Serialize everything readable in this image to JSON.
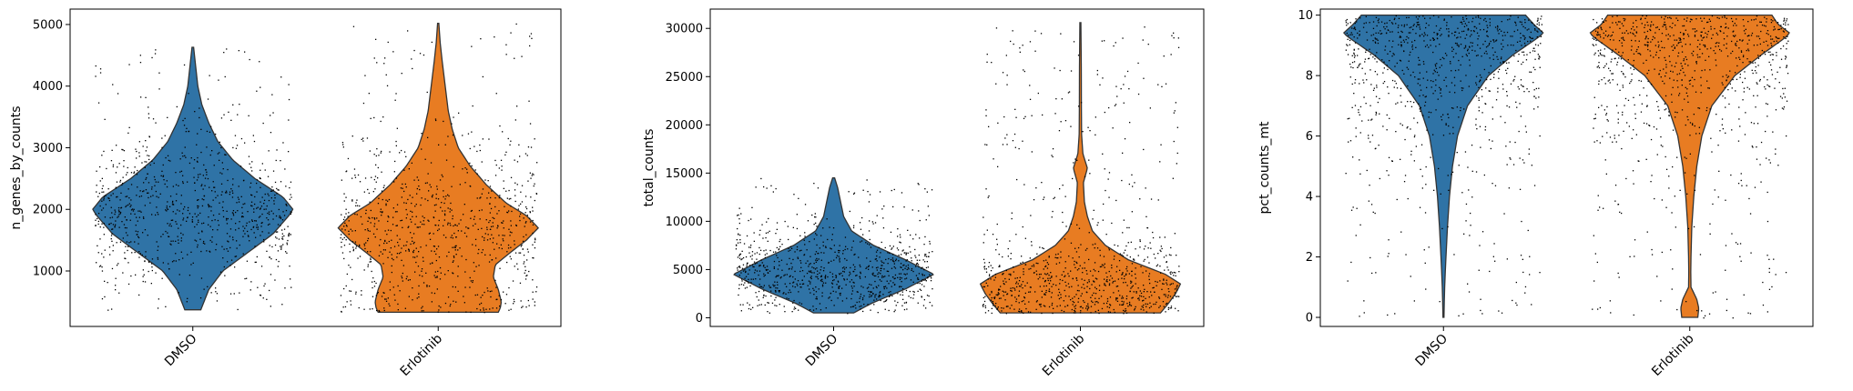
{
  "colors": {
    "DMSO": "#2f73a6",
    "Erlotinib": "#e87c22",
    "edge": "#333333",
    "dots": "#000000"
  },
  "chart_data": [
    {
      "type": "violin",
      "ylabel": "n_genes_by_counts",
      "ylim": [
        100,
        5250
      ],
      "yticks": [
        1000,
        2000,
        3000,
        4000,
        5000
      ],
      "categories": [
        "DMSO",
        "Erlotinib"
      ],
      "series": [
        {
          "category": "DMSO",
          "range": [
            370,
            4630
          ],
          "density_profile": [
            [
              370,
              0.08
            ],
            [
              700,
              0.16
            ],
            [
              1000,
              0.3
            ],
            [
              1300,
              0.55
            ],
            [
              1600,
              0.8
            ],
            [
              1900,
              0.96
            ],
            [
              2000,
              1.0
            ],
            [
              2200,
              0.9
            ],
            [
              2500,
              0.62
            ],
            [
              2800,
              0.4
            ],
            [
              3100,
              0.25
            ],
            [
              3400,
              0.16
            ],
            [
              3700,
              0.09
            ],
            [
              4000,
              0.05
            ],
            [
              4300,
              0.03
            ],
            [
              4630,
              0.008
            ]
          ]
        },
        {
          "category": "Erlotinib",
          "range": [
            330,
            5020
          ],
          "density_profile": [
            [
              330,
              0.6
            ],
            [
              400,
              0.62
            ],
            [
              500,
              0.63
            ],
            [
              700,
              0.6
            ],
            [
              900,
              0.55
            ],
            [
              1100,
              0.57
            ],
            [
              1300,
              0.72
            ],
            [
              1500,
              0.88
            ],
            [
              1700,
              1.0
            ],
            [
              1900,
              0.88
            ],
            [
              2100,
              0.68
            ],
            [
              2400,
              0.48
            ],
            [
              2700,
              0.32
            ],
            [
              3000,
              0.2
            ],
            [
              3300,
              0.14
            ],
            [
              3600,
              0.1
            ],
            [
              4000,
              0.07
            ],
            [
              4400,
              0.04
            ],
            [
              4700,
              0.02
            ],
            [
              5020,
              0.006
            ]
          ]
        }
      ]
    },
    {
      "type": "violin",
      "ylabel": "total_counts",
      "ylim": [
        -900,
        32000
      ],
      "yticks": [
        0,
        5000,
        10000,
        15000,
        20000,
        25000,
        30000
      ],
      "categories": [
        "DMSO",
        "Erlotinib"
      ],
      "series": [
        {
          "category": "DMSO",
          "range": [
            500,
            14500
          ],
          "density_profile": [
            [
              500,
              0.2
            ],
            [
              1500,
              0.38
            ],
            [
              3000,
              0.72
            ],
            [
              4500,
              1.0
            ],
            [
              6000,
              0.72
            ],
            [
              7500,
              0.4
            ],
            [
              9000,
              0.18
            ],
            [
              10500,
              0.1
            ],
            [
              12000,
              0.07
            ],
            [
              13500,
              0.04
            ],
            [
              14500,
              0.01
            ]
          ]
        },
        {
          "category": "Erlotinib",
          "range": [
            500,
            30600
          ],
          "density_profile": [
            [
              500,
              0.8
            ],
            [
              1500,
              0.88
            ],
            [
              2500,
              0.95
            ],
            [
              3500,
              1.0
            ],
            [
              4500,
              0.85
            ],
            [
              6000,
              0.48
            ],
            [
              7500,
              0.25
            ],
            [
              9000,
              0.12
            ],
            [
              10500,
              0.07
            ],
            [
              12000,
              0.04
            ],
            [
              14000,
              0.03
            ],
            [
              15500,
              0.07
            ],
            [
              17000,
              0.025
            ],
            [
              19000,
              0.012
            ],
            [
              22000,
              0.01
            ],
            [
              26000,
              0.009
            ],
            [
              30600,
              0.005
            ]
          ]
        }
      ]
    },
    {
      "type": "violin",
      "ylabel": "pct_counts_mt",
      "ylim": [
        -0.3,
        10.2
      ],
      "yticks": [
        0,
        2,
        4,
        6,
        8,
        10
      ],
      "categories": [
        "DMSO",
        "Erlotinib"
      ],
      "series": [
        {
          "category": "DMSO",
          "range": [
            0,
            10
          ],
          "density_profile": [
            [
              0,
              0.005
            ],
            [
              0.5,
              0.008
            ],
            [
              1,
              0.012
            ],
            [
              1.5,
              0.018
            ],
            [
              2,
              0.025
            ],
            [
              3,
              0.04
            ],
            [
              4,
              0.06
            ],
            [
              5,
              0.09
            ],
            [
              6,
              0.14
            ],
            [
              7,
              0.24
            ],
            [
              8,
              0.45
            ],
            [
              8.7,
              0.7
            ],
            [
              9.2,
              0.92
            ],
            [
              9.4,
              1.0
            ],
            [
              9.7,
              0.9
            ],
            [
              10,
              0.82
            ]
          ]
        },
        {
          "category": "Erlotinib",
          "range": [
            0,
            10
          ],
          "density_profile": [
            [
              0,
              0.08
            ],
            [
              0.3,
              0.09
            ],
            [
              0.6,
              0.07
            ],
            [
              1,
              0.012
            ],
            [
              1.5,
              0.01
            ],
            [
              2,
              0.012
            ],
            [
              3,
              0.02
            ],
            [
              4,
              0.04
            ],
            [
              5,
              0.07
            ],
            [
              6,
              0.12
            ],
            [
              7,
              0.22
            ],
            [
              8,
              0.45
            ],
            [
              8.7,
              0.72
            ],
            [
              9.2,
              0.93
            ],
            [
              9.4,
              1.0
            ],
            [
              9.7,
              0.88
            ],
            [
              10,
              0.82
            ]
          ]
        }
      ]
    }
  ]
}
